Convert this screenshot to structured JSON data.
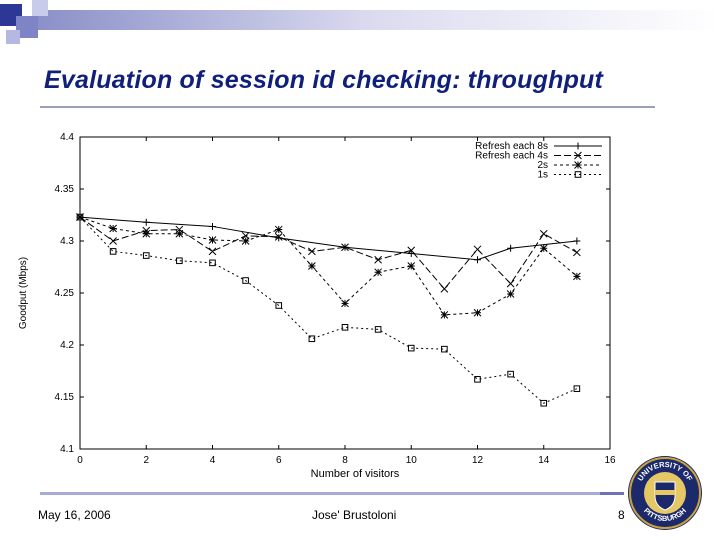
{
  "slide": {
    "title": "Evaluation of session id checking: throughput",
    "footer_date": "May 16, 2006",
    "footer_author": "Jose' Brustoloni",
    "footer_page": "8",
    "seal_text_top": "UNIVERSITY OF",
    "seal_text_bottom": "PITTSBURGH",
    "accent_color": "#101f7a"
  },
  "chart_data": {
    "type": "line",
    "xlabel": "Number of visitors",
    "ylabel": "Goodput (Mbps)",
    "xlim": [
      0,
      16
    ],
    "ylim": [
      4.1,
      4.4
    ],
    "xticks": [
      "0",
      "2",
      "4",
      "6",
      "8",
      "10",
      "12",
      "14",
      "16"
    ],
    "yticks": [
      "4.1",
      "4.15",
      "4.2",
      "4.25",
      "4.3",
      "4.35",
      "4.4"
    ],
    "grid": false,
    "legend_position": "top-right",
    "series": [
      {
        "name": "Refresh each 8s",
        "marker": "plus",
        "x": [
          0,
          2,
          4,
          6,
          8,
          10,
          12,
          13,
          15
        ],
        "y": [
          4.323,
          4.318,
          4.314,
          4.303,
          4.294,
          4.288,
          4.282,
          4.293,
          4.3
        ]
      },
      {
        "name": "Refresh each 4s",
        "marker": "x",
        "x": [
          0,
          1,
          2,
          3,
          4,
          5,
          6,
          7,
          8,
          9,
          10,
          11,
          12,
          13,
          14,
          15
        ],
        "y": [
          4.323,
          4.3,
          4.31,
          4.311,
          4.29,
          4.305,
          4.304,
          4.29,
          4.294,
          4.282,
          4.291,
          4.254,
          4.292,
          4.259,
          4.307,
          4.289
        ]
      },
      {
        "name": "2s",
        "marker": "star",
        "x": [
          0,
          1,
          2,
          3,
          4,
          5,
          6,
          7,
          8,
          9,
          10,
          11,
          12,
          13,
          14,
          15
        ],
        "y": [
          4.323,
          4.312,
          4.307,
          4.307,
          4.301,
          4.3,
          4.311,
          4.276,
          4.24,
          4.27,
          4.276,
          4.229,
          4.231,
          4.249,
          4.293,
          4.266
        ]
      },
      {
        "name": "1s",
        "marker": "square",
        "x": [
          0,
          1,
          2,
          3,
          4,
          5,
          6,
          7,
          8,
          9,
          10,
          11,
          12,
          13,
          14,
          15
        ],
        "y": [
          4.323,
          4.29,
          4.286,
          4.281,
          4.279,
          4.262,
          4.238,
          4.206,
          4.217,
          4.215,
          4.197,
          4.196,
          4.167,
          4.172,
          4.144,
          4.158
        ]
      }
    ]
  }
}
